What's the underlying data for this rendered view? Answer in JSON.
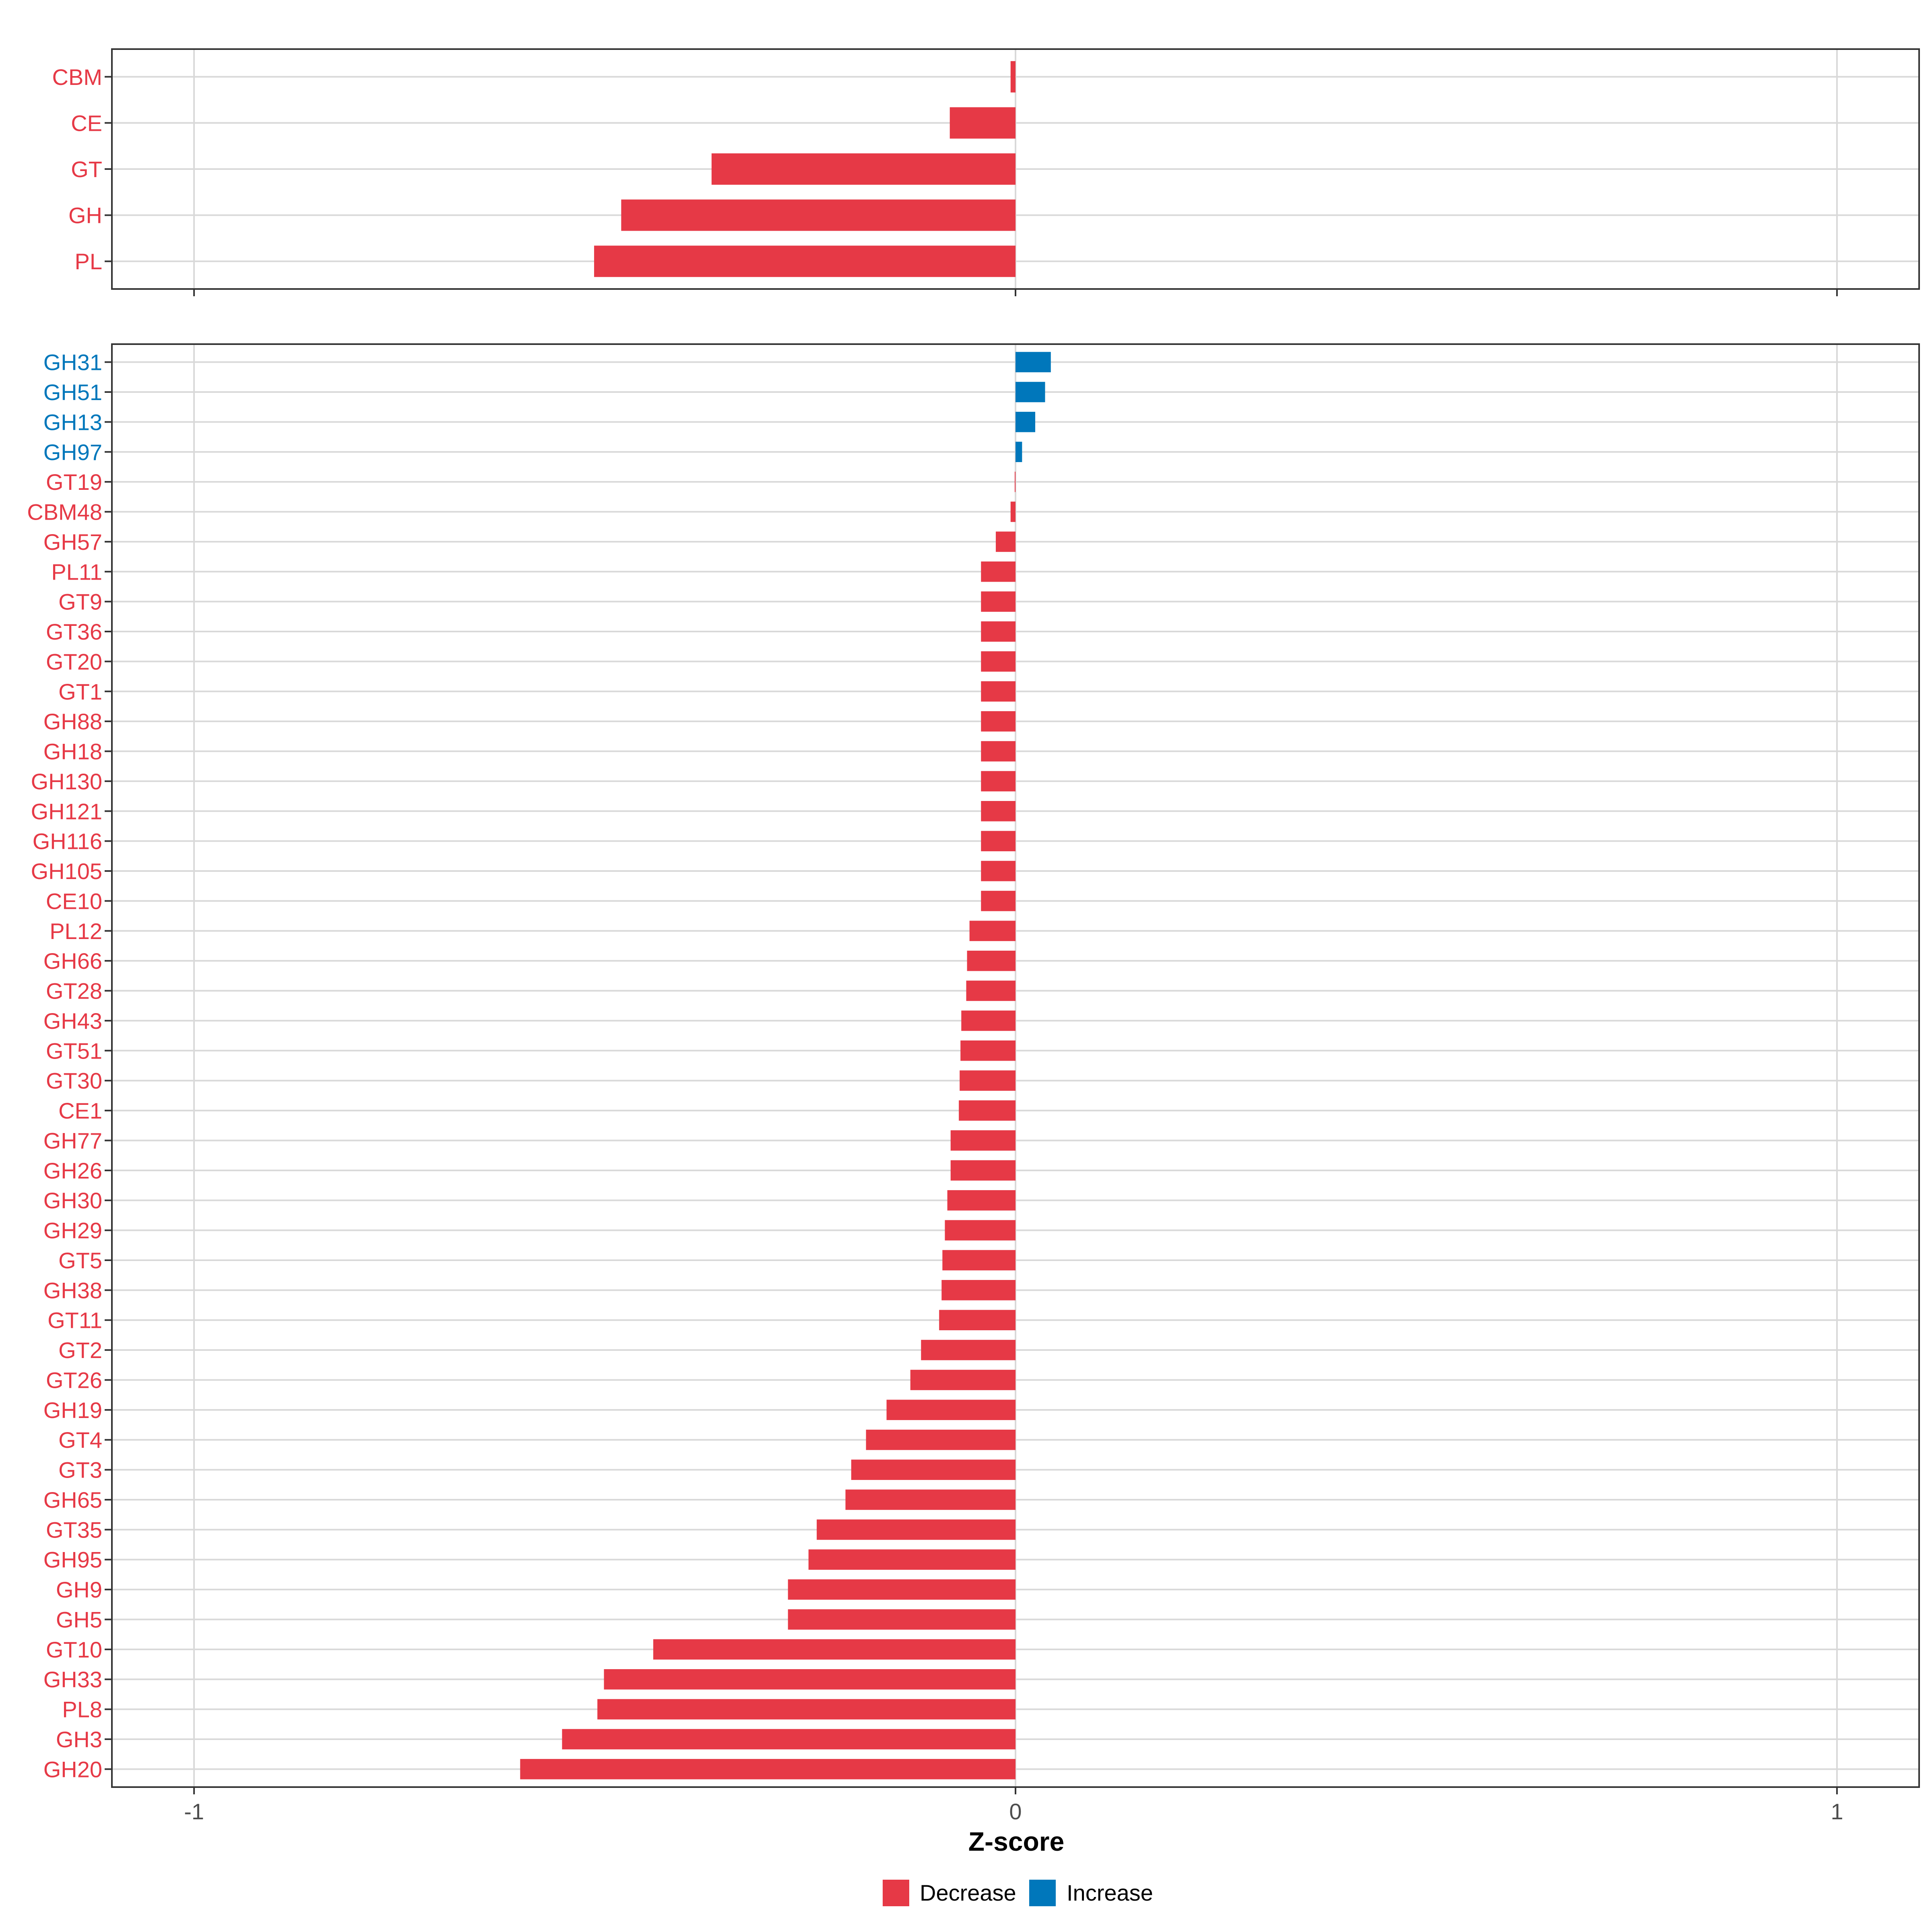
{
  "colors": {
    "decrease": "#E63946",
    "increase": "#0077BB",
    "grid": "#d9d9d9",
    "panel_border": "#333333"
  },
  "chart_data": [
    {
      "type": "bar",
      "orientation": "horizontal",
      "panel": "top",
      "xlim": [
        -1.1,
        1.1
      ],
      "x_ticks": [
        -1,
        0,
        1
      ],
      "show_x_tick_labels": false,
      "categories": [
        "CBM",
        "CE",
        "GT",
        "GH",
        "PL"
      ],
      "values": [
        -0.006,
        -0.08,
        -0.37,
        -0.48,
        -0.513
      ],
      "directions": [
        "Decrease",
        "Decrease",
        "Decrease",
        "Decrease",
        "Decrease"
      ]
    },
    {
      "type": "bar",
      "orientation": "horizontal",
      "panel": "bottom",
      "xlim": [
        -1.1,
        1.1
      ],
      "x_ticks": [
        -1,
        0,
        1
      ],
      "x_tick_labels": [
        "-1",
        "0",
        "1"
      ],
      "show_x_tick_labels": true,
      "xlabel": "Z-score",
      "categories": [
        "GH31",
        "GH51",
        "GH13",
        "GH97",
        "GT19",
        "CBM48",
        "GH57",
        "PL11",
        "GT9",
        "GT36",
        "GT20",
        "GT1",
        "GH88",
        "GH18",
        "GH130",
        "GH121",
        "GH116",
        "GH105",
        "CE10",
        "PL12",
        "GH66",
        "GT28",
        "GH43",
        "GT51",
        "GT30",
        "CE1",
        "GH77",
        "GH26",
        "GH30",
        "GH29",
        "GT5",
        "GH38",
        "GT11",
        "GT2",
        "GT26",
        "GH19",
        "GT4",
        "GT3",
        "GH65",
        "GT35",
        "GH95",
        "GH9",
        "GH5",
        "GT10",
        "GH33",
        "PL8",
        "GH3",
        "GH20"
      ],
      "values": [
        0.043,
        0.036,
        0.024,
        0.008,
        -0.001,
        -0.006,
        -0.024,
        -0.042,
        -0.042,
        -0.042,
        -0.042,
        -0.042,
        -0.042,
        -0.042,
        -0.042,
        -0.042,
        -0.042,
        -0.042,
        -0.042,
        -0.056,
        -0.059,
        -0.06,
        -0.066,
        -0.067,
        -0.068,
        -0.069,
        -0.079,
        -0.079,
        -0.083,
        -0.086,
        -0.089,
        -0.09,
        -0.093,
        -0.115,
        -0.128,
        -0.157,
        -0.182,
        -0.2,
        -0.207,
        -0.242,
        -0.252,
        -0.277,
        -0.277,
        -0.441,
        -0.501,
        -0.509,
        -0.552,
        -0.603
      ],
      "directions": [
        "Increase",
        "Increase",
        "Increase",
        "Increase",
        "Decrease",
        "Decrease",
        "Decrease",
        "Decrease",
        "Decrease",
        "Decrease",
        "Decrease",
        "Decrease",
        "Decrease",
        "Decrease",
        "Decrease",
        "Decrease",
        "Decrease",
        "Decrease",
        "Decrease",
        "Decrease",
        "Decrease",
        "Decrease",
        "Decrease",
        "Decrease",
        "Decrease",
        "Decrease",
        "Decrease",
        "Decrease",
        "Decrease",
        "Decrease",
        "Decrease",
        "Decrease",
        "Decrease",
        "Decrease",
        "Decrease",
        "Decrease",
        "Decrease",
        "Decrease",
        "Decrease",
        "Decrease",
        "Decrease",
        "Decrease",
        "Decrease",
        "Decrease",
        "Decrease",
        "Decrease",
        "Decrease",
        "Decrease"
      ]
    }
  ],
  "legend": {
    "position": "bottom",
    "items": [
      {
        "label": "Decrease",
        "key": "decrease"
      },
      {
        "label": "Increase",
        "key": "increase"
      }
    ]
  }
}
